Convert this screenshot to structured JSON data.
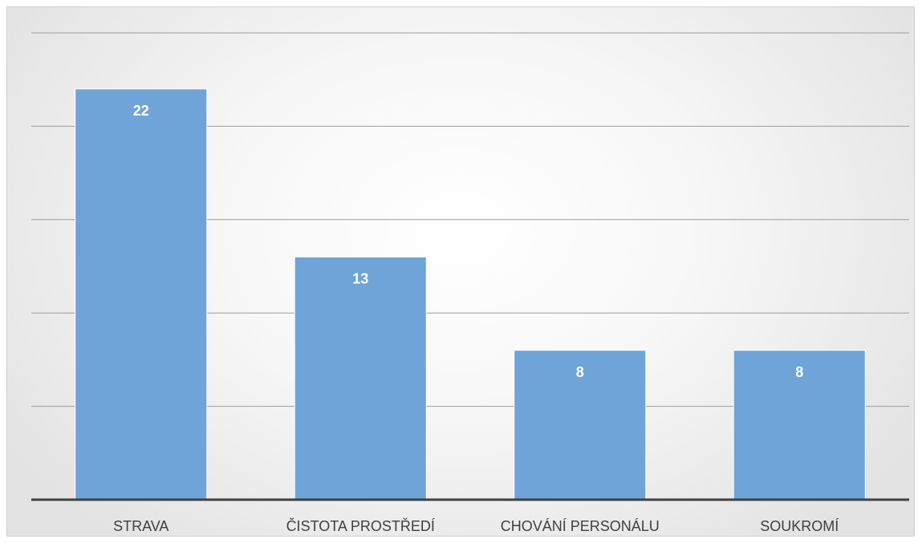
{
  "chart_data": {
    "type": "bar",
    "categories": [
      "STRAVA",
      "ČISTOTA PROSTŘEDÍ",
      "CHOVÁNÍ PERSONÁLU",
      "SOUKROMÍ"
    ],
    "values": [
      22,
      13,
      8,
      8
    ],
    "data_labels": [
      "22",
      "13",
      "8",
      "8"
    ],
    "title": "",
    "xlabel": "",
    "ylabel": "",
    "ylim": [
      0,
      25
    ],
    "gridlines": [
      5,
      10,
      15,
      20,
      25
    ],
    "grid": true,
    "y_tick_labels_visible": false,
    "legend": "none",
    "colors": {
      "bar": "#6fa4d8",
      "data_label": "#ffffff",
      "category_label": "#404040",
      "gridline": "#9c9c9c",
      "axis": "#404040"
    }
  }
}
